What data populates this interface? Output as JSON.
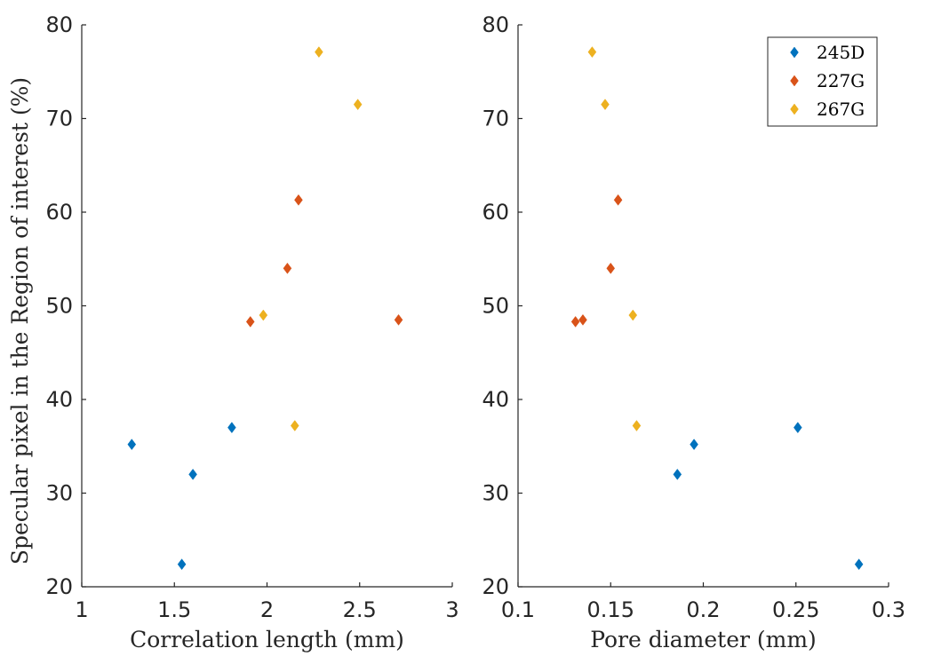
{
  "chart_data": [
    {
      "type": "scatter",
      "xlabel": "Correlation length (mm)",
      "ylabel": "Specular pixel in the Region of interest (%)",
      "xlim": [
        1,
        3
      ],
      "ylim": [
        20,
        80
      ],
      "xticks": [
        "1",
        "1.5",
        "2",
        "2.5",
        "3"
      ],
      "yticks": [
        "20",
        "30",
        "40",
        "50",
        "60",
        "70",
        "80"
      ],
      "grid": false,
      "series": [
        {
          "name": "245D",
          "color": "#0072BD",
          "points": [
            [
              1.27,
              35.2
            ],
            [
              1.6,
              32.0
            ],
            [
              1.81,
              37.0
            ],
            [
              1.54,
              22.4
            ]
          ]
        },
        {
          "name": "227G",
          "color": "#D95319",
          "points": [
            [
              1.91,
              48.3
            ],
            [
              2.11,
              54.0
            ],
            [
              2.17,
              61.3
            ],
            [
              2.71,
              48.5
            ]
          ]
        },
        {
          "name": "267G",
          "color": "#EDB120",
          "points": [
            [
              2.28,
              77.1
            ],
            [
              2.49,
              71.5
            ],
            [
              1.98,
              49.0
            ],
            [
              2.15,
              37.2
            ]
          ]
        }
      ]
    },
    {
      "type": "scatter",
      "xlabel": "Pore diameter (mm)",
      "ylabel": "",
      "xlim": [
        0.1,
        0.3
      ],
      "ylim": [
        20,
        80
      ],
      "xticks": [
        "0.1",
        "0.15",
        "0.2",
        "0.25",
        "0.3"
      ],
      "yticks": [
        "20",
        "30",
        "40",
        "50",
        "60",
        "70",
        "80"
      ],
      "grid": false,
      "legend": {
        "position": "top-right",
        "entries": [
          "245D",
          "227G",
          "267G"
        ]
      },
      "series": [
        {
          "name": "245D",
          "color": "#0072BD",
          "points": [
            [
              0.186,
              32.0
            ],
            [
              0.195,
              35.2
            ],
            [
              0.251,
              37.0
            ],
            [
              0.284,
              22.4
            ]
          ]
        },
        {
          "name": "227G",
          "color": "#D95319",
          "points": [
            [
              0.131,
              48.3
            ],
            [
              0.135,
              48.5
            ],
            [
              0.15,
              54.0
            ],
            [
              0.154,
              61.3
            ]
          ]
        },
        {
          "name": "267G",
          "color": "#EDB120",
          "points": [
            [
              0.14,
              77.1
            ],
            [
              0.147,
              71.5
            ],
            [
              0.162,
              49.0
            ],
            [
              0.164,
              37.2
            ]
          ]
        }
      ]
    }
  ]
}
